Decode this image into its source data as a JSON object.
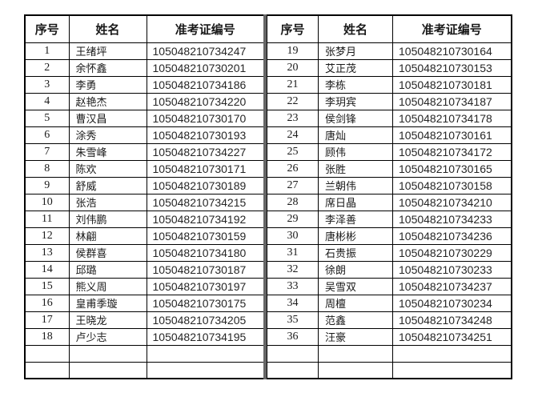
{
  "page": {
    "background_color": "#ffffff",
    "border_color": "#000000",
    "divider_color": "#666666",
    "text_color": "#1a1a1a"
  },
  "tables": [
    {
      "headers": {
        "seq": "序号",
        "name": "姓名",
        "ticket": "准考证编号"
      },
      "empty_row_count": 2,
      "rows": [
        {
          "seq": "1",
          "name": "王绪坪",
          "ticket": "105048210734247"
        },
        {
          "seq": "2",
          "name": "余怀鑫",
          "ticket": "105048210730201"
        },
        {
          "seq": "3",
          "name": "李勇",
          "ticket": "105048210734186"
        },
        {
          "seq": "4",
          "name": "赵艳杰",
          "ticket": "105048210734220"
        },
        {
          "seq": "5",
          "name": "曹汉昌",
          "ticket": "105048210730170"
        },
        {
          "seq": "6",
          "name": "涂秀",
          "ticket": "105048210730193"
        },
        {
          "seq": "7",
          "name": "朱雪峰",
          "ticket": "105048210734227"
        },
        {
          "seq": "8",
          "name": "陈欢",
          "ticket": "105048210730171"
        },
        {
          "seq": "9",
          "name": "舒威",
          "ticket": "105048210730189"
        },
        {
          "seq": "10",
          "name": "张浩",
          "ticket": "105048210734215"
        },
        {
          "seq": "11",
          "name": "刘伟鹏",
          "ticket": "105048210734192"
        },
        {
          "seq": "12",
          "name": "林翩",
          "ticket": "105048210730159"
        },
        {
          "seq": "13",
          "name": "侯群喜",
          "ticket": "105048210734180"
        },
        {
          "seq": "14",
          "name": "邱璐",
          "ticket": "105048210730187"
        },
        {
          "seq": "15",
          "name": "熊义周",
          "ticket": "105048210730197"
        },
        {
          "seq": "16",
          "name": "皇甫季璇",
          "ticket": "105048210730175"
        },
        {
          "seq": "17",
          "name": "王晓龙",
          "ticket": "105048210734205"
        },
        {
          "seq": "18",
          "name": "卢少志",
          "ticket": "105048210734195"
        }
      ]
    },
    {
      "headers": {
        "seq": "序号",
        "name": "姓名",
        "ticket": "准考证编号"
      },
      "empty_row_count": 2,
      "rows": [
        {
          "seq": "19",
          "name": "张梦月",
          "ticket": "105048210730164"
        },
        {
          "seq": "20",
          "name": "艾正茂",
          "ticket": "105048210730153"
        },
        {
          "seq": "21",
          "name": "李栋",
          "ticket": "105048210730181"
        },
        {
          "seq": "22",
          "name": "李玥宾",
          "ticket": "105048210734187"
        },
        {
          "seq": "23",
          "name": "侯剑锋",
          "ticket": "105048210734178"
        },
        {
          "seq": "24",
          "name": "唐灿",
          "ticket": "105048210730161"
        },
        {
          "seq": "25",
          "name": "顾伟",
          "ticket": "105048210734172"
        },
        {
          "seq": "26",
          "name": "张胜",
          "ticket": "105048210730165"
        },
        {
          "seq": "27",
          "name": "兰朝伟",
          "ticket": "105048210730158"
        },
        {
          "seq": "28",
          "name": "席日晶",
          "ticket": "105048210734210"
        },
        {
          "seq": "29",
          "name": "李泽善",
          "ticket": "105048210734233"
        },
        {
          "seq": "30",
          "name": "唐彬彬",
          "ticket": "105048210734236"
        },
        {
          "seq": "31",
          "name": "石贵振",
          "ticket": "105048210730229"
        },
        {
          "seq": "32",
          "name": "徐朗",
          "ticket": "105048210730233"
        },
        {
          "seq": "33",
          "name": "吴雪双",
          "ticket": "105048210734237"
        },
        {
          "seq": "34",
          "name": "周檀",
          "ticket": "105048210730234"
        },
        {
          "seq": "35",
          "name": "范鑫",
          "ticket": "105048210734248"
        },
        {
          "seq": "36",
          "name": "汪豪",
          "ticket": "105048210734251"
        }
      ]
    }
  ]
}
